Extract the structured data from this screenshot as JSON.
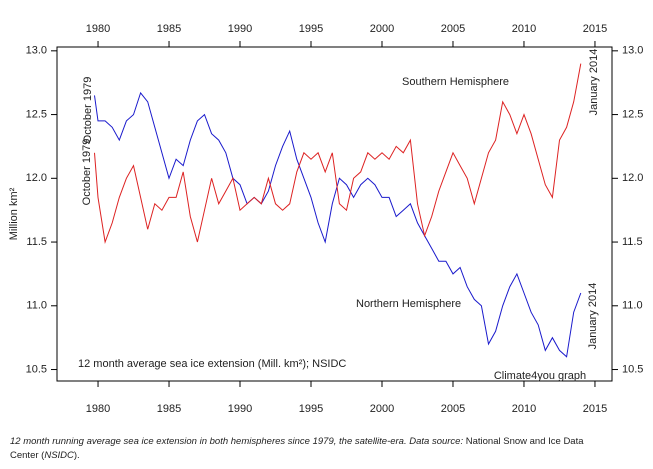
{
  "chart_data": {
    "type": "line",
    "y_label": "Million km²",
    "annotations": [
      "Southern Hemisphere",
      "Northern Hemisphere",
      "October 1979",
      "October 1979",
      "January 2014",
      "January 2014",
      "12 month average sea ice extension (Mill. km²); NSIDC",
      "Climate4you graph"
    ],
    "caption": [
      "12 month running average sea ice extension in both hemispheres since 1979, the satellite-era. Data source: ",
      "National Snow and Ice Data",
      "Center (",
      "NSIDC",
      ")."
    ],
    "xlim": [
      1977.11,
      2016.2
    ],
    "xticks": [
      1980,
      1985,
      1990,
      1995,
      2000,
      2005,
      2010,
      2015
    ],
    "ylim": [
      10.41,
      13.03
    ],
    "yticks": [
      {
        "value": 10.5,
        "label": "10.5"
      },
      {
        "value": 11,
        "label": "11.0"
      },
      {
        "value": 11.5,
        "label": "11.5"
      },
      {
        "value": 12,
        "label": "12.0"
      },
      {
        "value": 12.5,
        "label": "12.5"
      },
      {
        "value": 13,
        "label": "13.0"
      }
    ],
    "x": [
      1979.75,
      1980,
      1980.5,
      1981,
      1981.5,
      1982,
      1982.5,
      1983,
      1983.5,
      1984,
      1984.5,
      1985,
      1985.5,
      1986,
      1986.5,
      1987,
      1987.5,
      1988,
      1988.5,
      1989,
      1989.5,
      1990,
      1990.5,
      1991,
      1991.5,
      1992,
      1992.5,
      1993,
      1993.5,
      1994,
      1994.5,
      1995,
      1995.5,
      1996,
      1996.5,
      1997,
      1997.5,
      1998,
      1998.5,
      1999,
      1999.5,
      2000,
      2000.5,
      2001,
      2001.5,
      2002,
      2002.5,
      2003,
      2003.5,
      2004,
      2004.5,
      2005,
      2005.5,
      2006,
      2006.5,
      2007,
      2007.5,
      2008,
      2008.5,
      2009,
      2009.5,
      2010,
      2010.5,
      2011,
      2011.5,
      2012,
      2012.5,
      2013,
      2013.5,
      2014
    ],
    "series": [
      {
        "color": "#1a1acc",
        "values": [
          12.65,
          12.45,
          12.45,
          12.4,
          12.3,
          12.45,
          12.5,
          12.67,
          12.6,
          12.4,
          12.2,
          12.0,
          12.15,
          12.1,
          12.3,
          12.45,
          12.5,
          12.35,
          12.3,
          12.2,
          12.0,
          11.95,
          11.8,
          11.85,
          11.8,
          11.9,
          12.1,
          12.25,
          12.37,
          12.15,
          12.0,
          11.85,
          11.65,
          11.5,
          11.8,
          12.0,
          11.95,
          11.85,
          11.95,
          12.0,
          11.95,
          11.85,
          11.85,
          11.7,
          11.75,
          11.8,
          11.65,
          11.55,
          11.45,
          11.35,
          11.35,
          11.25,
          11.3,
          11.15,
          11.05,
          11.0,
          10.7,
          10.8,
          11.0,
          11.15,
          11.25,
          11.1,
          10.95,
          10.85,
          10.65,
          10.75,
          10.65,
          10.6,
          10.95,
          11.1
        ]
      },
      {
        "color": "#dd2222",
        "values": [
          12.2,
          11.85,
          11.5,
          11.65,
          11.85,
          12.0,
          12.1,
          11.85,
          11.6,
          11.8,
          11.75,
          11.85,
          11.85,
          12.05,
          11.7,
          11.5,
          11.75,
          12.0,
          11.8,
          11.9,
          12.0,
          11.75,
          11.8,
          11.85,
          11.8,
          12.0,
          11.8,
          11.75,
          11.8,
          12.05,
          12.2,
          12.15,
          12.2,
          12.05,
          12.2,
          11.8,
          11.75,
          12.0,
          12.05,
          12.2,
          12.15,
          12.2,
          12.15,
          12.25,
          12.2,
          12.3,
          11.8,
          11.55,
          11.7,
          11.9,
          12.05,
          12.2,
          12.1,
          12.0,
          11.8,
          12.0,
          12.2,
          12.3,
          12.6,
          12.5,
          12.35,
          12.5,
          12.35,
          12.15,
          11.95,
          11.85,
          12.3,
          12.4,
          12.6,
          12.9
        ]
      }
    ]
  }
}
